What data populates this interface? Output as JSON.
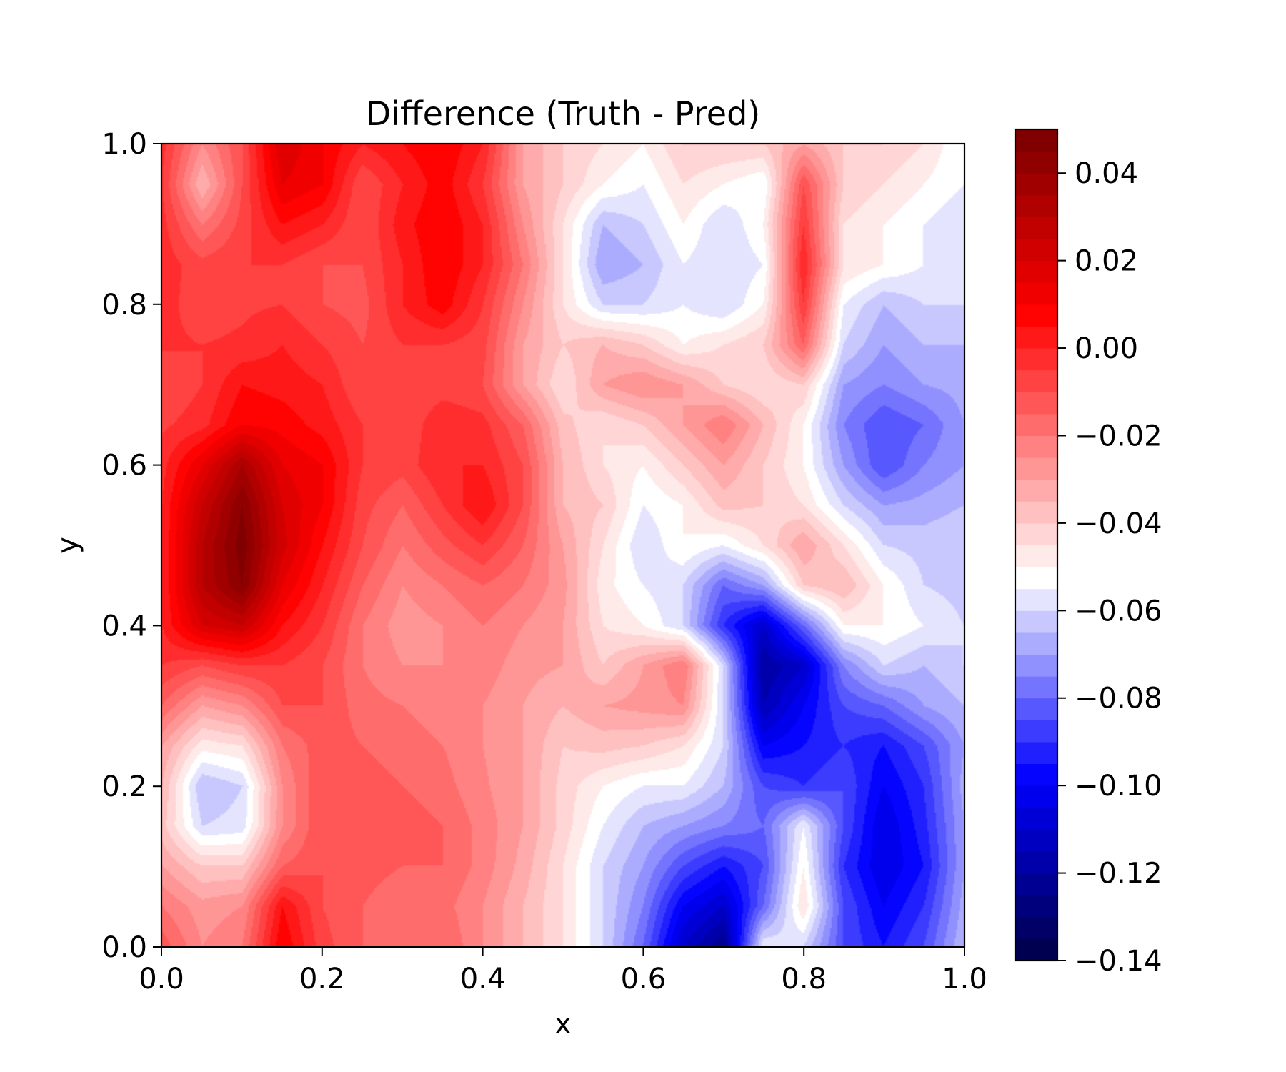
{
  "chart_data": {
    "type": "heatmap",
    "subtype": "filled-contour",
    "title": "Difference (Truth - Pred)",
    "xlabel": "x",
    "ylabel": "y",
    "xlim": [
      0.0,
      1.0
    ],
    "ylim": [
      0.0,
      1.0
    ],
    "xticks": [
      "0.0",
      "0.2",
      "0.4",
      "0.6",
      "0.8",
      "1.0"
    ],
    "yticks": [
      "0.0",
      "0.2",
      "0.4",
      "0.6",
      "0.8",
      "1.0"
    ],
    "colormap": "seismic",
    "colorbar": {
      "vmin": -0.14,
      "vmax": 0.05,
      "levels": 38,
      "ticks": [
        "0.04",
        "0.02",
        "0.00",
        "−0.02",
        "−0.04",
        "−0.06",
        "−0.08",
        "−0.10",
        "−0.12",
        "−0.14"
      ],
      "tick_values": [
        0.04,
        0.02,
        0.0,
        -0.02,
        -0.04,
        -0.06,
        -0.08,
        -0.1,
        -0.12,
        -0.14
      ]
    },
    "x": [
      0.0,
      0.05,
      0.1,
      0.15,
      0.2,
      0.25,
      0.3,
      0.35,
      0.4,
      0.45,
      0.5,
      0.55,
      0.6,
      0.65,
      0.7,
      0.75,
      0.8,
      0.85,
      0.9,
      0.95,
      1.0
    ],
    "y": [
      1.0,
      0.95,
      0.9,
      0.85,
      0.8,
      0.75,
      0.7,
      0.65,
      0.6,
      0.55,
      0.5,
      0.45,
      0.4,
      0.35,
      0.3,
      0.25,
      0.2,
      0.15,
      0.1,
      0.05,
      0.0
    ],
    "z": [
      [
        -0.003,
        -0.025,
        -0.01,
        0.02,
        0.01,
        0.0,
        0.005,
        0.01,
        0.0,
        -0.03,
        -0.04,
        -0.045,
        -0.05,
        -0.04,
        -0.04,
        -0.04,
        -0.03,
        -0.04,
        -0.04,
        -0.045,
        -0.055
      ],
      [
        -0.005,
        -0.035,
        -0.01,
        0.015,
        0.01,
        -0.01,
        0.0,
        0.008,
        -0.005,
        -0.03,
        -0.04,
        -0.05,
        -0.055,
        -0.045,
        -0.05,
        -0.055,
        -0.01,
        -0.04,
        -0.045,
        -0.05,
        -0.055
      ],
      [
        -0.003,
        -0.02,
        -0.008,
        0.005,
        0.0,
        -0.01,
        0.003,
        0.01,
        0.0,
        -0.025,
        -0.045,
        -0.065,
        -0.06,
        -0.05,
        -0.06,
        -0.05,
        -0.005,
        -0.045,
        -0.05,
        -0.055,
        -0.06
      ],
      [
        -0.002,
        -0.008,
        -0.005,
        -0.005,
        -0.01,
        -0.01,
        0.0,
        0.01,
        0.0,
        -0.02,
        -0.045,
        -0.07,
        -0.065,
        -0.055,
        -0.06,
        -0.055,
        0.0,
        -0.045,
        -0.05,
        -0.055,
        -0.06
      ],
      [
        -0.003,
        -0.008,
        -0.006,
        -0.005,
        -0.01,
        -0.012,
        0.0,
        0.008,
        -0.005,
        -0.025,
        -0.045,
        -0.06,
        -0.06,
        -0.055,
        -0.06,
        -0.05,
        -0.005,
        -0.055,
        -0.065,
        -0.06,
        -0.06
      ],
      [
        -0.004,
        -0.005,
        -0.004,
        0.0,
        -0.005,
        -0.01,
        -0.005,
        -0.005,
        -0.008,
        -0.03,
        -0.04,
        -0.035,
        -0.04,
        -0.05,
        -0.045,
        -0.04,
        -0.015,
        -0.06,
        -0.07,
        -0.065,
        -0.065
      ],
      [
        -0.01,
        -0.005,
        0.005,
        0.003,
        0.0,
        -0.01,
        -0.01,
        -0.008,
        -0.01,
        -0.03,
        -0.045,
        -0.03,
        -0.025,
        -0.03,
        -0.04,
        -0.045,
        -0.04,
        -0.07,
        -0.075,
        -0.07,
        -0.068
      ],
      [
        -0.006,
        -0.002,
        0.01,
        0.008,
        0.003,
        -0.005,
        -0.01,
        0.0,
        -0.003,
        -0.015,
        -0.038,
        -0.045,
        -0.04,
        -0.03,
        -0.02,
        -0.035,
        -0.05,
        -0.075,
        -0.085,
        -0.08,
        -0.07
      ],
      [
        -0.002,
        0.015,
        0.035,
        0.015,
        0.01,
        -0.005,
        -0.008,
        0.0,
        0.0,
        -0.01,
        -0.035,
        -0.045,
        -0.05,
        -0.04,
        -0.03,
        -0.04,
        -0.05,
        -0.07,
        -0.085,
        -0.075,
        -0.07
      ],
      [
        0.0,
        0.025,
        0.045,
        0.02,
        0.01,
        -0.008,
        -0.015,
        -0.005,
        0.005,
        -0.01,
        -0.035,
        -0.04,
        -0.055,
        -0.05,
        -0.038,
        -0.04,
        -0.045,
        -0.06,
        -0.07,
        -0.068,
        -0.065
      ],
      [
        0.0,
        0.03,
        0.048,
        0.022,
        0.005,
        -0.01,
        -0.02,
        -0.012,
        -0.005,
        -0.015,
        -0.03,
        -0.045,
        -0.06,
        -0.05,
        -0.055,
        -0.045,
        -0.03,
        -0.045,
        -0.06,
        -0.062,
        -0.06
      ],
      [
        0.0,
        0.03,
        0.045,
        0.015,
        0.0,
        -0.015,
        -0.025,
        -0.02,
        -0.015,
        -0.02,
        -0.028,
        -0.048,
        -0.055,
        -0.06,
        -0.08,
        -0.07,
        -0.04,
        -0.035,
        -0.05,
        -0.06,
        -0.062
      ],
      [
        0.0,
        0.02,
        0.025,
        0.005,
        -0.005,
        -0.02,
        -0.028,
        -0.025,
        -0.02,
        -0.025,
        -0.03,
        -0.045,
        -0.05,
        -0.06,
        -0.09,
        -0.11,
        -0.08,
        -0.05,
        -0.05,
        -0.055,
        -0.06
      ],
      [
        -0.005,
        -0.01,
        -0.005,
        -0.005,
        -0.01,
        -0.02,
        -0.025,
        -0.025,
        -0.022,
        -0.028,
        -0.03,
        -0.04,
        -0.03,
        -0.02,
        -0.06,
        -0.12,
        -0.11,
        -0.075,
        -0.06,
        -0.065,
        -0.06
      ],
      [
        -0.015,
        -0.03,
        -0.025,
        -0.01,
        -0.01,
        -0.018,
        -0.02,
        -0.022,
        -0.025,
        -0.03,
        -0.035,
        -0.03,
        -0.028,
        -0.025,
        -0.06,
        -0.115,
        -0.1,
        -0.085,
        -0.08,
        -0.07,
        -0.065
      ],
      [
        -0.03,
        -0.048,
        -0.045,
        -0.02,
        -0.012,
        -0.015,
        -0.018,
        -0.02,
        -0.025,
        -0.03,
        -0.04,
        -0.038,
        -0.04,
        -0.045,
        -0.06,
        -0.1,
        -0.095,
        -0.09,
        -0.095,
        -0.085,
        -0.07
      ],
      [
        -0.035,
        -0.065,
        -0.06,
        -0.025,
        -0.01,
        -0.012,
        -0.015,
        -0.018,
        -0.024,
        -0.03,
        -0.042,
        -0.05,
        -0.055,
        -0.055,
        -0.065,
        -0.085,
        -0.09,
        -0.085,
        -0.1,
        -0.09,
        -0.068
      ],
      [
        -0.038,
        -0.06,
        -0.058,
        -0.025,
        -0.01,
        -0.01,
        -0.012,
        -0.015,
        -0.022,
        -0.03,
        -0.042,
        -0.055,
        -0.065,
        -0.07,
        -0.075,
        -0.08,
        -0.055,
        -0.085,
        -0.105,
        -0.092,
        -0.07
      ],
      [
        -0.03,
        -0.04,
        -0.04,
        -0.015,
        -0.01,
        -0.012,
        -0.015,
        -0.015,
        -0.022,
        -0.032,
        -0.045,
        -0.06,
        -0.07,
        -0.085,
        -0.095,
        -0.085,
        -0.05,
        -0.09,
        -0.105,
        -0.095,
        -0.07
      ],
      [
        -0.02,
        -0.028,
        -0.025,
        0.005,
        -0.01,
        -0.015,
        -0.02,
        -0.018,
        -0.025,
        -0.035,
        -0.045,
        -0.06,
        -0.075,
        -0.1,
        -0.11,
        -0.08,
        -0.045,
        -0.085,
        -0.1,
        -0.09,
        -0.068
      ],
      [
        -0.012,
        -0.025,
        -0.02,
        0.01,
        -0.008,
        -0.015,
        -0.02,
        -0.015,
        -0.025,
        -0.035,
        -0.045,
        -0.06,
        -0.08,
        -0.11,
        -0.125,
        -0.055,
        -0.06,
        -0.085,
        -0.095,
        -0.085,
        -0.065
      ]
    ]
  }
}
